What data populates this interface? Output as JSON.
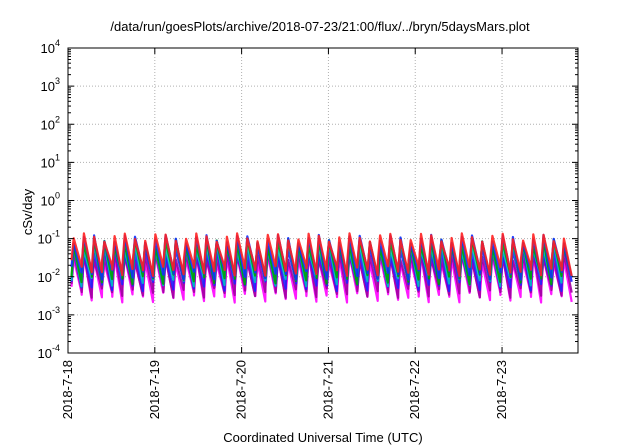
{
  "chart_data": {
    "type": "line",
    "title": "/data/run/goesPlots/archive/2018-07-23/21:00/flux/../bryn/5daysMars.plot",
    "xlabel": "Coordinated Universal Time (UTC)",
    "ylabel": "cSv/day",
    "yscale": "log",
    "ylim": [
      0.0001,
      10000
    ],
    "xlim": [
      "2018-07-18",
      "2018-07-23T21:00"
    ],
    "grid": true,
    "x_ticks": [
      "2018-7-18",
      "2018-7-19",
      "2018-7-20",
      "2018-7-21",
      "2018-7-22",
      "2018-7-23"
    ],
    "y_ticks": [
      {
        "base": "10",
        "exp": "4"
      },
      {
        "base": "10",
        "exp": "3"
      },
      {
        "base": "10",
        "exp": "2"
      },
      {
        "base": "10",
        "exp": "1"
      },
      {
        "base": "10",
        "exp": "0"
      },
      {
        "base": "10",
        "exp": "-1"
      },
      {
        "base": "10",
        "exp": "-2"
      },
      {
        "base": "10",
        "exp": "-3"
      },
      {
        "base": "10",
        "exp": "-4"
      }
    ],
    "y_tick_values": [
      10000,
      1000,
      100,
      10,
      1,
      0.1,
      0.01,
      0.001,
      0.0001
    ],
    "pattern": {
      "cycles_per_day": 8.5,
      "cycle_peak": 0.1,
      "cycle_trough": 0.01
    },
    "series": [
      {
        "color": "#ff00ff",
        "peak": 0.03,
        "trough": 0.003
      },
      {
        "color": "#a000a0",
        "peak": 0.035,
        "trough": 0.004
      },
      {
        "color": "#2020ff",
        "peak": 0.05,
        "trough": 0.006
      },
      {
        "color": "#00c0c0",
        "peak": 0.065,
        "trough": 0.008
      },
      {
        "color": "#00a000",
        "peak": 0.08,
        "trough": 0.009
      },
      {
        "color": "#1030ff",
        "peak": 0.1,
        "trough": 0.012
      },
      {
        "color": "#ff2020",
        "peak": 0.11,
        "trough": 0.015
      }
    ]
  }
}
